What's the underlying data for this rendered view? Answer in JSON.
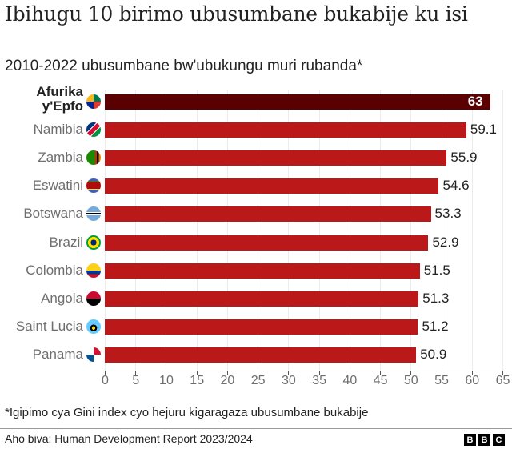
{
  "title": "Ibihugu 10 birimo ubusumbane bukabije ku isi",
  "subtitle": "2010-2022 ubusumbane bw'ubukungu muri rubanda*",
  "note": "*Igipimo cya Gini index cyo hejuru kigaragaza ubusumbane bukabije",
  "source": "Aho biva: Human Development Report 2023/2024",
  "logo": [
    "B",
    "B",
    "C"
  ],
  "colors": {
    "bar": "#bb1919",
    "highlight_bar": "#5a0000",
    "grid": "#ececec"
  },
  "chart_data": {
    "type": "bar",
    "orientation": "horizontal",
    "title": "Ibihugu 10 birimo ubusumbane bukabije ku isi",
    "subtitle": "2010-2022 ubusumbane bw'ubukungu muri rubanda*",
    "categories": [
      "Afurika y'Epfo",
      "Namibia",
      "Zambia",
      "Eswatini",
      "Botswana",
      "Brazil",
      "Colombia",
      "Angola",
      "Saint Lucia",
      "Panama"
    ],
    "values": [
      63,
      59.1,
      55.9,
      54.6,
      53.3,
      52.9,
      51.5,
      51.3,
      51.2,
      50.9
    ],
    "value_labels": [
      "63",
      "59.1",
      "55.9",
      "54.6",
      "53.3",
      "52.9",
      "51.5",
      "51.3",
      "51.2",
      "50.9"
    ],
    "highlight": "Afurika y'Epfo",
    "xlabel": "",
    "ylabel": "",
    "xlim": [
      0,
      65
    ],
    "xticks": [
      "0",
      "5",
      "10",
      "15",
      "20",
      "25",
      "30",
      "35",
      "40",
      "45",
      "50",
      "55",
      "60",
      "65"
    ],
    "grid": true,
    "legend": "none"
  }
}
